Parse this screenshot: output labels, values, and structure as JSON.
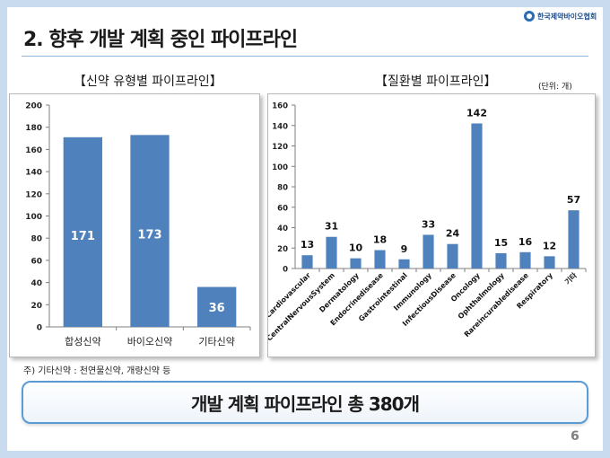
{
  "slide": {
    "title": "2. 향후 개발 계획 중인 파이프라인",
    "logo_text": "한국제약바이오협회",
    "footnote": "주) 기타신약 : 천연물신약, 개량신약 등",
    "summary": "개발 계획 파이프라인 총 380개",
    "page_number": "6",
    "colors": {
      "bar": "#4f81bd",
      "background": "#c9dcef",
      "accent_border": "#5b9bd5"
    }
  },
  "chart_data": [
    {
      "type": "bar",
      "title": "【신약 유형별 파이프라인】",
      "categories": [
        "합성신약",
        "바이오신약",
        "기타신약"
      ],
      "values": [
        171,
        173,
        36
      ],
      "ylim": [
        0,
        200
      ],
      "yticks": [
        0,
        20,
        40,
        60,
        80,
        100,
        120,
        140,
        160,
        180,
        200
      ],
      "data_labels": "inside-top",
      "grid": false,
      "legend": "none"
    },
    {
      "type": "bar",
      "title": "【질환별 파이프라인】",
      "unit": "(단위: 개)",
      "categories": [
        "Cardiovascular",
        "CentralNervousSystem",
        "Dermatology",
        "Endocrinedisease",
        "Gastrointestinal",
        "Immunology",
        "InfectiousDisease",
        "Oncology",
        "Ophthalmology",
        "Rareincurabledisease",
        "Respiratory",
        "기타"
      ],
      "values": [
        13,
        31,
        10,
        18,
        9,
        33,
        24,
        142,
        15,
        16,
        12,
        57
      ],
      "ylim": [
        0,
        160
      ],
      "yticks": [
        0,
        20,
        40,
        60,
        80,
        100,
        120,
        140,
        160
      ],
      "data_labels": "above",
      "grid": false,
      "legend": "none"
    }
  ]
}
